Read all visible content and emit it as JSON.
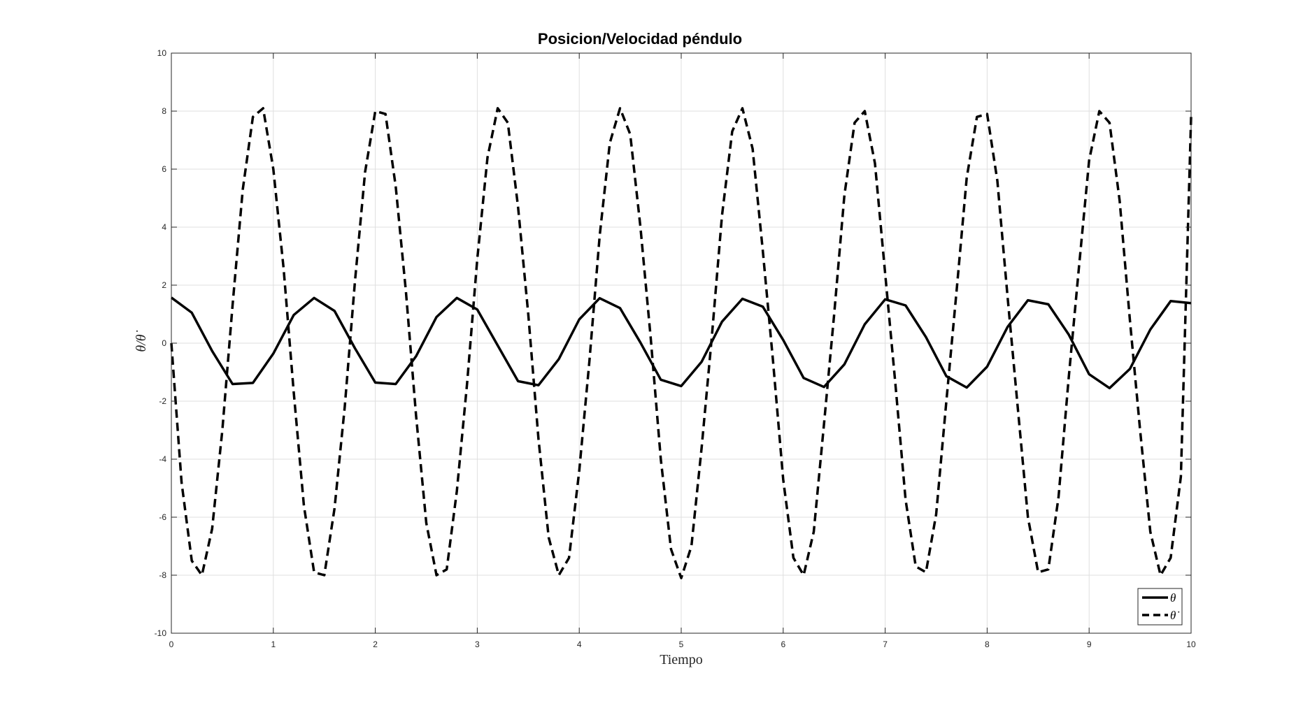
{
  "chart_data": {
    "type": "line",
    "title": "Posicion/Velocidad péndulo",
    "xlabel": "Tiempo",
    "ylabel": "θ/θ̇",
    "xlim": [
      0,
      10
    ],
    "ylim": [
      -10,
      10
    ],
    "xticks": [
      0,
      1,
      2,
      3,
      4,
      5,
      6,
      7,
      8,
      9,
      10
    ],
    "yticks": [
      -10,
      -8,
      -6,
      -4,
      -2,
      0,
      2,
      4,
      6,
      8,
      10
    ],
    "xtick_labels": [
      "0",
      "1",
      "2",
      "3",
      "4",
      "5",
      "6",
      "7",
      "8",
      "9",
      "10"
    ],
    "ytick_labels": [
      "-10",
      "-8",
      "-6",
      "-4",
      "-2",
      "0",
      "2",
      "4",
      "6",
      "8",
      "10"
    ],
    "grid": true,
    "legend_position": "bottom-right",
    "series": [
      {
        "name": "θ",
        "style": "solid",
        "color": "#000000",
        "x": [
          0,
          0.2,
          0.4,
          0.6,
          0.8,
          1.0,
          1.2,
          1.4,
          1.6,
          1.8,
          2.0,
          2.2,
          2.4,
          2.6,
          2.8,
          3.0,
          3.2,
          3.4,
          3.6,
          3.8,
          4.0,
          4.2,
          4.4,
          4.6,
          4.8,
          5.0,
          5.2,
          5.4,
          5.6,
          5.8,
          6.0,
          6.2,
          6.4,
          6.6,
          6.8,
          7.0,
          7.2,
          7.4,
          7.6,
          7.8,
          8.0,
          8.2,
          8.4,
          8.6,
          8.8,
          9.0,
          9.2,
          9.4,
          9.6,
          9.8,
          10.0
        ],
        "y": [
          1.57,
          1.05,
          -0.27,
          -1.41,
          -1.37,
          -0.36,
          0.97,
          1.56,
          1.11,
          -0.17,
          -1.36,
          -1.41,
          -0.45,
          0.9,
          1.56,
          1.16,
          -0.08,
          -1.31,
          -1.45,
          -0.55,
          0.82,
          1.55,
          1.21,
          0.02,
          -1.26,
          -1.48,
          -0.64,
          0.74,
          1.53,
          1.26,
          0.11,
          -1.2,
          -1.51,
          -0.73,
          0.65,
          1.51,
          1.3,
          0.21,
          -1.14,
          -1.53,
          -0.81,
          0.56,
          1.48,
          1.34,
          0.3,
          -1.07,
          -1.55,
          -0.89,
          0.47,
          1.45,
          1.38
        ]
      },
      {
        "name": "θ̇",
        "style": "dashed",
        "color": "#000000",
        "x": [
          0,
          0.1,
          0.2,
          0.3,
          0.4,
          0.5,
          0.6,
          0.7,
          0.8,
          0.9,
          1.0,
          1.1,
          1.2,
          1.3,
          1.4,
          1.5,
          1.6,
          1.7,
          1.8,
          1.9,
          2.0,
          2.1,
          2.2,
          2.3,
          2.4,
          2.5,
          2.6,
          2.7,
          2.8,
          2.9,
          3.0,
          3.1,
          3.2,
          3.3,
          3.4,
          3.5,
          3.6,
          3.7,
          3.8,
          3.9,
          4.0,
          4.1,
          4.2,
          4.3,
          4.4,
          4.5,
          4.6,
          4.7,
          4.8,
          4.9,
          5.0,
          5.1,
          5.2,
          5.3,
          5.4,
          5.5,
          5.6,
          5.7,
          5.8,
          5.9,
          6.0,
          6.1,
          6.2,
          6.3,
          6.4,
          6.5,
          6.6,
          6.7,
          6.8,
          6.9,
          7.0,
          7.1,
          7.2,
          7.3,
          7.4,
          7.5,
          7.6,
          7.7,
          7.8,
          7.9,
          8.0,
          8.1,
          8.2,
          8.3,
          8.4,
          8.5,
          8.6,
          8.7,
          8.8,
          8.9,
          9.0,
          9.1,
          9.2,
          9.3,
          9.4,
          9.5,
          9.6,
          9.7,
          9.8,
          9.9,
          10.0
        ],
        "y": [
          0,
          -4.8,
          -7.5,
          -8.0,
          -6.4,
          -3.0,
          1.3,
          5.3,
          7.8,
          8.1,
          6.0,
          2.6,
          -1.7,
          -5.6,
          -7.9,
          -8.0,
          -5.7,
          -2.2,
          2.1,
          5.9,
          8.0,
          7.9,
          5.4,
          1.8,
          -2.5,
          -6.2,
          -8.0,
          -7.8,
          -5.1,
          -1.4,
          2.9,
          6.4,
          8.1,
          7.6,
          4.7,
          1.0,
          -3.3,
          -6.7,
          -8.0,
          -7.4,
          -4.4,
          -0.6,
          3.7,
          6.9,
          8.1,
          7.2,
          4.0,
          0.2,
          -4.0,
          -7.1,
          -8.1,
          -7.0,
          -3.6,
          0.2,
          4.4,
          7.3,
          8.1,
          6.7,
          3.2,
          -0.6,
          -4.7,
          -7.4,
          -8.0,
          -6.5,
          -2.8,
          1.0,
          5.1,
          7.6,
          8.0,
          6.2,
          2.4,
          -1.4,
          -5.4,
          -7.7,
          -7.9,
          -5.9,
          -2.0,
          1.8,
          5.7,
          7.8,
          7.9,
          5.6,
          1.6,
          -2.2,
          -6.0,
          -7.9,
          -7.8,
          -5.3,
          -1.2,
          2.6,
          6.3,
          8.0,
          7.6,
          4.9,
          0.8,
          -3.0,
          -6.5,
          -8.0,
          -7.4,
          -4.6,
          7.8
        ]
      }
    ]
  }
}
